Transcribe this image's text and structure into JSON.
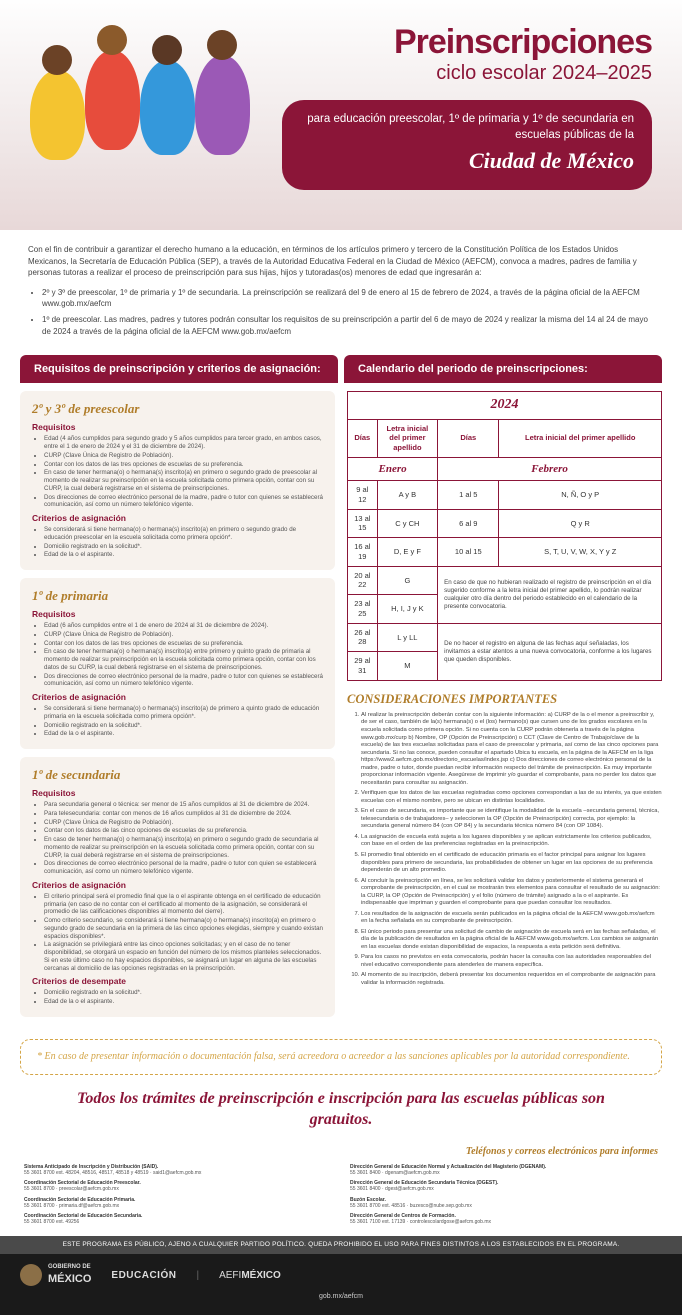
{
  "title": {
    "main": "Preinscripciones",
    "sub": "ciclo escolar 2024–2025"
  },
  "banner": {
    "text": "para educación preescolar, 1º de primaria y 1º de secundaria en escuelas públicas de la",
    "city": "Ciudad de México"
  },
  "intro": {
    "body": "Con el fin de contribuir a garantizar el derecho humano a la educación, en términos de los artículos primero y tercero de la Constitución Política de los Estados Unidos Mexicanos, la Secretaría de Educación Pública (SEP), a través de la Autoridad Educativa Federal en la Ciudad de México (AEFCM), convoca a madres, padres de familia y personas tutoras a realizar el proceso de preinscripción para sus hijas, hijos y tutoradas(os) menores de edad que ingresarán a:",
    "bullets": [
      "2º y 3º de preescolar, 1º de primaria y 1º de secundaria. La preinscripción se realizará del 9 de enero al 15 de febrero de 2024, a través de la página oficial de la AEFCM www.gob.mx/aefcm",
      "1º de preescolar. Las madres, padres y tutores podrán consultar los requisitos de su preinscripción a partir del 6 de mayo de 2024 y realizar la misma del 14 al 24 de mayo de 2024 a través de la página oficial de la AEFCM www.gob.mx/aefcm"
    ]
  },
  "headers": {
    "left": "Requisitos de preinscripción y criterios de asignación:",
    "right": "Calendario del periodo de preinscripciones:"
  },
  "levels": [
    {
      "title": "2º y 3º de preescolar",
      "req_h": "Requisitos",
      "req": [
        "Edad (4 años cumplidos para segundo grado y 5 años cumplidos para tercer grado, en ambos casos, entre el 1 de enero de 2024 y el 31 de diciembre de 2024).",
        "CURP (Clave Única de Registro de Población).",
        "Contar con los datos de las tres opciones de escuelas de su preferencia.",
        "En caso de tener hermana(o) o hermana(s) inscrito(a) en primero o segundo grado de preescolar al momento de realizar su preinscripción en la escuela solicitada como primera opción, contar con su CURP, la cual deberá registrarse en el sistema de preinscripciones.",
        "Dos direcciones de correo electrónico personal de la madre, padre o tutor con quienes se establecerá comunicación, así como un número telefónico vigente."
      ],
      "crit_h": "Criterios de asignación",
      "crit": [
        "Se considerará si tiene hermana(o) o hermana(s) inscrito(a) en primero o segundo grado de educación preescolar en la escuela solicitada como primera opción*.",
        "Domicilio registrado en la solicitud*.",
        "Edad de la o el aspirante."
      ]
    },
    {
      "title": "1º de primaria",
      "req_h": "Requisitos",
      "req": [
        "Edad (6 años cumplidos entre el 1 de enero de 2024 al 31 de diciembre de 2024).",
        "CURP (Clave Única de Registro de Población).",
        "Contar con los datos de las tres opciones de escuelas de su preferencia.",
        "En caso de tener hermana(o) o hermana(s) inscrito(a) entre primero y quinto grado de primaria al momento de realizar su preinscripción en la escuela solicitada como primera opción, contar con los datos de su CURP, la cual deberá registrarse en el sistema de preinscripciones.",
        "Dos direcciones de correo electrónico personal de la madre, padre o tutor con quienes se establecerá comunicación, así como un número telefónico vigente."
      ],
      "crit_h": "Criterios de asignación",
      "crit": [
        "Se considerará si tiene hermana(o) o hermana(s) inscrito(a) de primero a quinto grado de educación primaria en la escuela solicitada como primera opción*.",
        "Domicilio registrado en la solicitud*.",
        "Edad de la o el aspirante."
      ]
    },
    {
      "title": "1º de secundaria",
      "req_h": "Requisitos",
      "req": [
        "Para secundaria general o técnica: ser menor de 15 años cumplidos al 31 de diciembre de 2024.",
        "Para telesecundaria: contar con menos de 16 años cumplidos al 31 de diciembre de 2024.",
        "CURP (Clave Única de Registro de Población).",
        "Contar con los datos de las cinco opciones de escuelas de su preferencia.",
        "En caso de tener hermana(o) o hermana(s) inscrito(a) en primero o segundo grado de secundaria al momento de realizar su preinscripción en la escuela solicitada como primera opción, contar con su CURP, la cual deberá registrarse en el sistema de preinscripciones.",
        "Dos direcciones de correo electrónico personal de la madre, padre o tutor con quien se establecerá comunicación, así como un número telefónico vigente."
      ],
      "crit_h": "Criterios de asignación",
      "crit": [
        "El criterio principal será el promedio final que la o el aspirante obtenga en el certificado de educación primaria (en caso de no contar con el certificado al momento de la asignación, se considerará el promedio de las calificaciones disponibles al momento del cierre).",
        "Como criterio secundario, se considerará si tiene hermana(o) o hermana(s) inscrito(a) en primero o segundo grado de secundaria en la primera de las cinco opciones elegidas, siempre y cuando existan espacios disponibles*.",
        "La asignación se privilegiará entre las cinco opciones solicitadas; y en el caso de no tener disponibilidad, se otorgará un espacio en función del número de los mismos planteles seleccionados. Si en este último caso no hay espacios disponibles, se asignará un lugar en alguna de las escuelas cercanas al domicilio de las opciones registradas en la preinscripción."
      ],
      "des_h": "Criterios de desempate",
      "des": [
        "Domicilio registrado en la solicitud*.",
        "Edad de la o el aspirante."
      ]
    }
  ],
  "calendar": {
    "year": "2024",
    "col_days": "Días",
    "col_letter": "Letra inicial del primer apellido",
    "months": [
      "Enero",
      "Febrero"
    ],
    "rows_jan": [
      [
        "9 al 12",
        "A y B"
      ],
      [
        "13 al 15",
        "C y CH"
      ],
      [
        "16 al 19",
        "D, E y F"
      ],
      [
        "20 al 22",
        "G"
      ],
      [
        "23 al 25",
        "H, I, J y K"
      ],
      [
        "26 al 28",
        "L y LL"
      ],
      [
        "29 al 31",
        "M"
      ]
    ],
    "rows_feb": [
      [
        "1 al 5",
        "N, Ñ, O y P"
      ],
      [
        "6 al 9",
        "Q y R"
      ],
      [
        "10 al 15",
        "S, T, U, V, W, X, Y y Z"
      ]
    ],
    "note1": "En caso de que no hubieran realizado el registro de preinscripción en el día sugerido conforme a la letra inicial del primer apellido, lo podrán realizar cualquier otro día dentro del periodo establecido en el calendario de la presente convocatoria.",
    "note2": "De no hacer el registro en alguna de las fechas aquí señaladas, los invitamos a estar atentos a una nueva convocatoria, conforme a los lugares que queden disponibles."
  },
  "consid": {
    "title": "CONSIDERACIONES IMPORTANTES",
    "items": [
      "Al realizar la preinscripción deberán contar con la siguiente información:\na) CURP de la o el menor a preinscribir y, de ser el caso, también de la(s) hermana(s) o el (los) hermano(s) que cursen uno de los grados escolares en la escuela solicitada como primera opción. Si no cuenta con la CURP podrán obtenerla a través de la página www.gob.mx/curp\nb) Nombre, OP (Opción de Preinscripción) o CCT (Clave de Centro de Trabajo/clave de la escuela) de las tres escuelas solicitadas para el caso de preescolar y primaria, así como de las cinco opciones para secundaria. Si no las conoce, pueden consultar el apartado Ubica tu escuela, en la página de la AEFCM en la liga https://www2.aefcm.gob.mx/directorio_escuelas/index.jsp\nc) Dos direcciones de correo electrónico personal de la madre, padre o tutor, donde puedan recibir información respecto del trámite de preinscripción. Es muy importante proporcionar información vigente. Asegúrese de imprimir y/o guardar el comprobante, para no perder los datos que necesitarán para consultar su asignación.",
      "Verifiquen que los datos de las escuelas registradas como opciones correspondan a las de su interés, ya que existen escuelas con el mismo nombre, pero se ubican en distintas localidades.",
      "En el caso de secundaria, es importante que se identifique la modalidad de la escuela –secundaria general, técnica, telesecundaria o de trabajadores– y seleccionen la OP (Opción de Preinscripción) correcta, por ejemplo: la secundaria general número 84 (con OP 84) y la secundaria técnica número 84 (con OP 1084).",
      "La asignación de escuela está sujeta a los lugares disponibles y se aplican estrictamente los criterios publicados, con base en el orden de las preferencias registradas en la preinscripción.",
      "El promedio final obtenido en el certificado de educación primaria es el factor principal para asignar los lugares disponibles para primero de secundaria, las probabilidades de obtener un lugar en las opciones de su preferencia dependerán de un alto promedio.",
      "Al concluir la preinscripción en línea, se les solicitará validar los datos y posteriormente el sistema generará el comprobante de preinscripción, en el cual se mostrarán tres elementos para consultar el resultado de su asignación: la CURP, la OP (Opción de Preinscripción) y el folio (número de trámite) asignado a la o el aspirante. Es indispensable que impriman y guarden el comprobante para que puedan consultar los resultados.",
      "Los resultados de la asignación de escuela serán publicados en la página oficial de la AEFCM www.gob.mx/aefcm en la fecha señalada en su comprobante de preinscripción.",
      "El único periodo para presentar una solicitud de cambio de asignación de escuela será en las fechas señaladas, el día de la publicación de resultados en la página oficial de la AEFCM www.gob.mx/aefcm. Los cambios se asignarán en las escuelas donde existan disponibilidad de espacios, la respuesta a esta petición será definitiva.",
      "Para los casos no previstos en esta convocatoria, podrán hacer la consulta con las autoridades responsables del nivel educativo correspondiente para atenderles de manera específica.",
      "Al momento de su inscripción, deberá presentar los documentos requeridos en el comprobante de asignación para validar la información registrada."
    ]
  },
  "warning": "* En caso de presentar información o documentación falsa, será acreedora o acreedor a las sanciones aplicables por la autoridad correspondiente.",
  "free": "Todos los trámites de preinscripción e inscripción para las escuelas públicas son gratuitos.",
  "contacts": {
    "title": "Teléfonos y correos electrónicos para informes",
    "items": [
      {
        "name": "Sistema Anticipado de Inscripción y Distribución (SAID).",
        "detail": "55 3601 8700 ext. 48204, 48516, 48517, 48518 y 48519 · said1@aefcm.gob.mx"
      },
      {
        "name": "Dirección General de Educación Normal y Actualización del Magisterio (DGENAM).",
        "detail": "55 3601 8400 · dgenam@aefcm.gob.mx"
      },
      {
        "name": "Coordinación Sectorial de Educación Preescolar.",
        "detail": "55 3601 8700 · preescolar@aefcm.gob.mx"
      },
      {
        "name": "Dirección General de Educación Secundaria Técnica (DGEST).",
        "detail": "55 3601 8400 · dgest@aefcm.gob.mx"
      },
      {
        "name": "Coordinación Sectorial de Educación Primaria.",
        "detail": "55 3601 8700 · primaria.df@aefcm.gob.mx"
      },
      {
        "name": "Buzón Escolar.",
        "detail": "55 3601 8700 ext. 48516 · buzesco@nube.sep.gob.mx"
      },
      {
        "name": "Coordinación Sectorial de Educación Secundaria.",
        "detail": "55 3601 8700 ext. 49256"
      },
      {
        "name": "Dirección General de Centros de Formación.",
        "detail": "55 3601 7100 ext. 17139 · controlescolardgose@aefcm.gob.mx"
      }
    ]
  },
  "disclaimer": "ESTE PROGRAMA ES PÚBLICO, AJENO A CUALQUIER PARTIDO POLÍTICO. QUEDA PROHIBIDO EL USO PARA FINES DISTINTOS A LOS ESTABLECIDOS EN EL PROGRAMA.",
  "footer": {
    "gob1": "GOBIERNO DE",
    "gob2": "MÉXICO",
    "edu": "EDUCACIÓN",
    "aef_light": "AEFI",
    "aef_bold": "MÉXICO",
    "url": "gob.mx/aefcm"
  }
}
